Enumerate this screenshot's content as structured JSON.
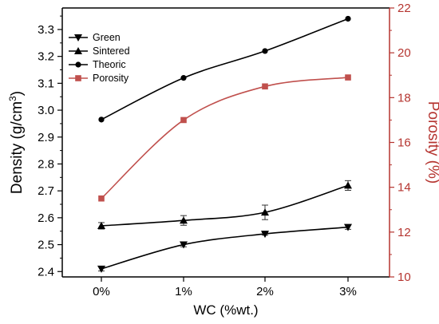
{
  "chart_data": {
    "type": "line",
    "xlabel": "WC (%wt.)",
    "ylabel_left": "Density (g/cm³)",
    "ylabel_right": "Porosity (%)",
    "categories": [
      "0%",
      "1%",
      "2%",
      "3%"
    ],
    "y_left": {
      "min": 2.38,
      "max": 3.38,
      "ticks": [
        "2.4",
        "2.5",
        "2.6",
        "2.7",
        "2.8",
        "2.9",
        "3.0",
        "3.1",
        "3.2",
        "3.3"
      ]
    },
    "y_right": {
      "min": 10,
      "max": 22,
      "ticks": [
        "10",
        "12",
        "14",
        "16",
        "18",
        "20",
        "22"
      ]
    },
    "series": [
      {
        "name": "Green",
        "axis": "left",
        "marker": "triangle-down",
        "color": "#000000",
        "values": [
          2.41,
          2.5,
          2.54,
          2.565
        ],
        "errors": [
          0.008,
          0.008,
          0.005,
          0.008
        ]
      },
      {
        "name": "Sintered",
        "axis": "left",
        "marker": "triangle-up",
        "color": "#000000",
        "values": [
          2.57,
          2.59,
          2.62,
          2.72
        ],
        "errors": [
          0.012,
          0.018,
          0.027,
          0.018
        ]
      },
      {
        "name": "Theoric",
        "axis": "left",
        "marker": "circle",
        "color": "#000000",
        "values": [
          2.965,
          3.12,
          3.22,
          3.34
        ],
        "errors": []
      },
      {
        "name": "Porosity",
        "axis": "right",
        "marker": "square",
        "color": "#c0504d",
        "values": [
          13.5,
          17.0,
          18.5,
          18.9
        ],
        "errors": []
      }
    ],
    "legend_position": "top-left",
    "right_axis_color": "#b5342f",
    "grid": false
  }
}
